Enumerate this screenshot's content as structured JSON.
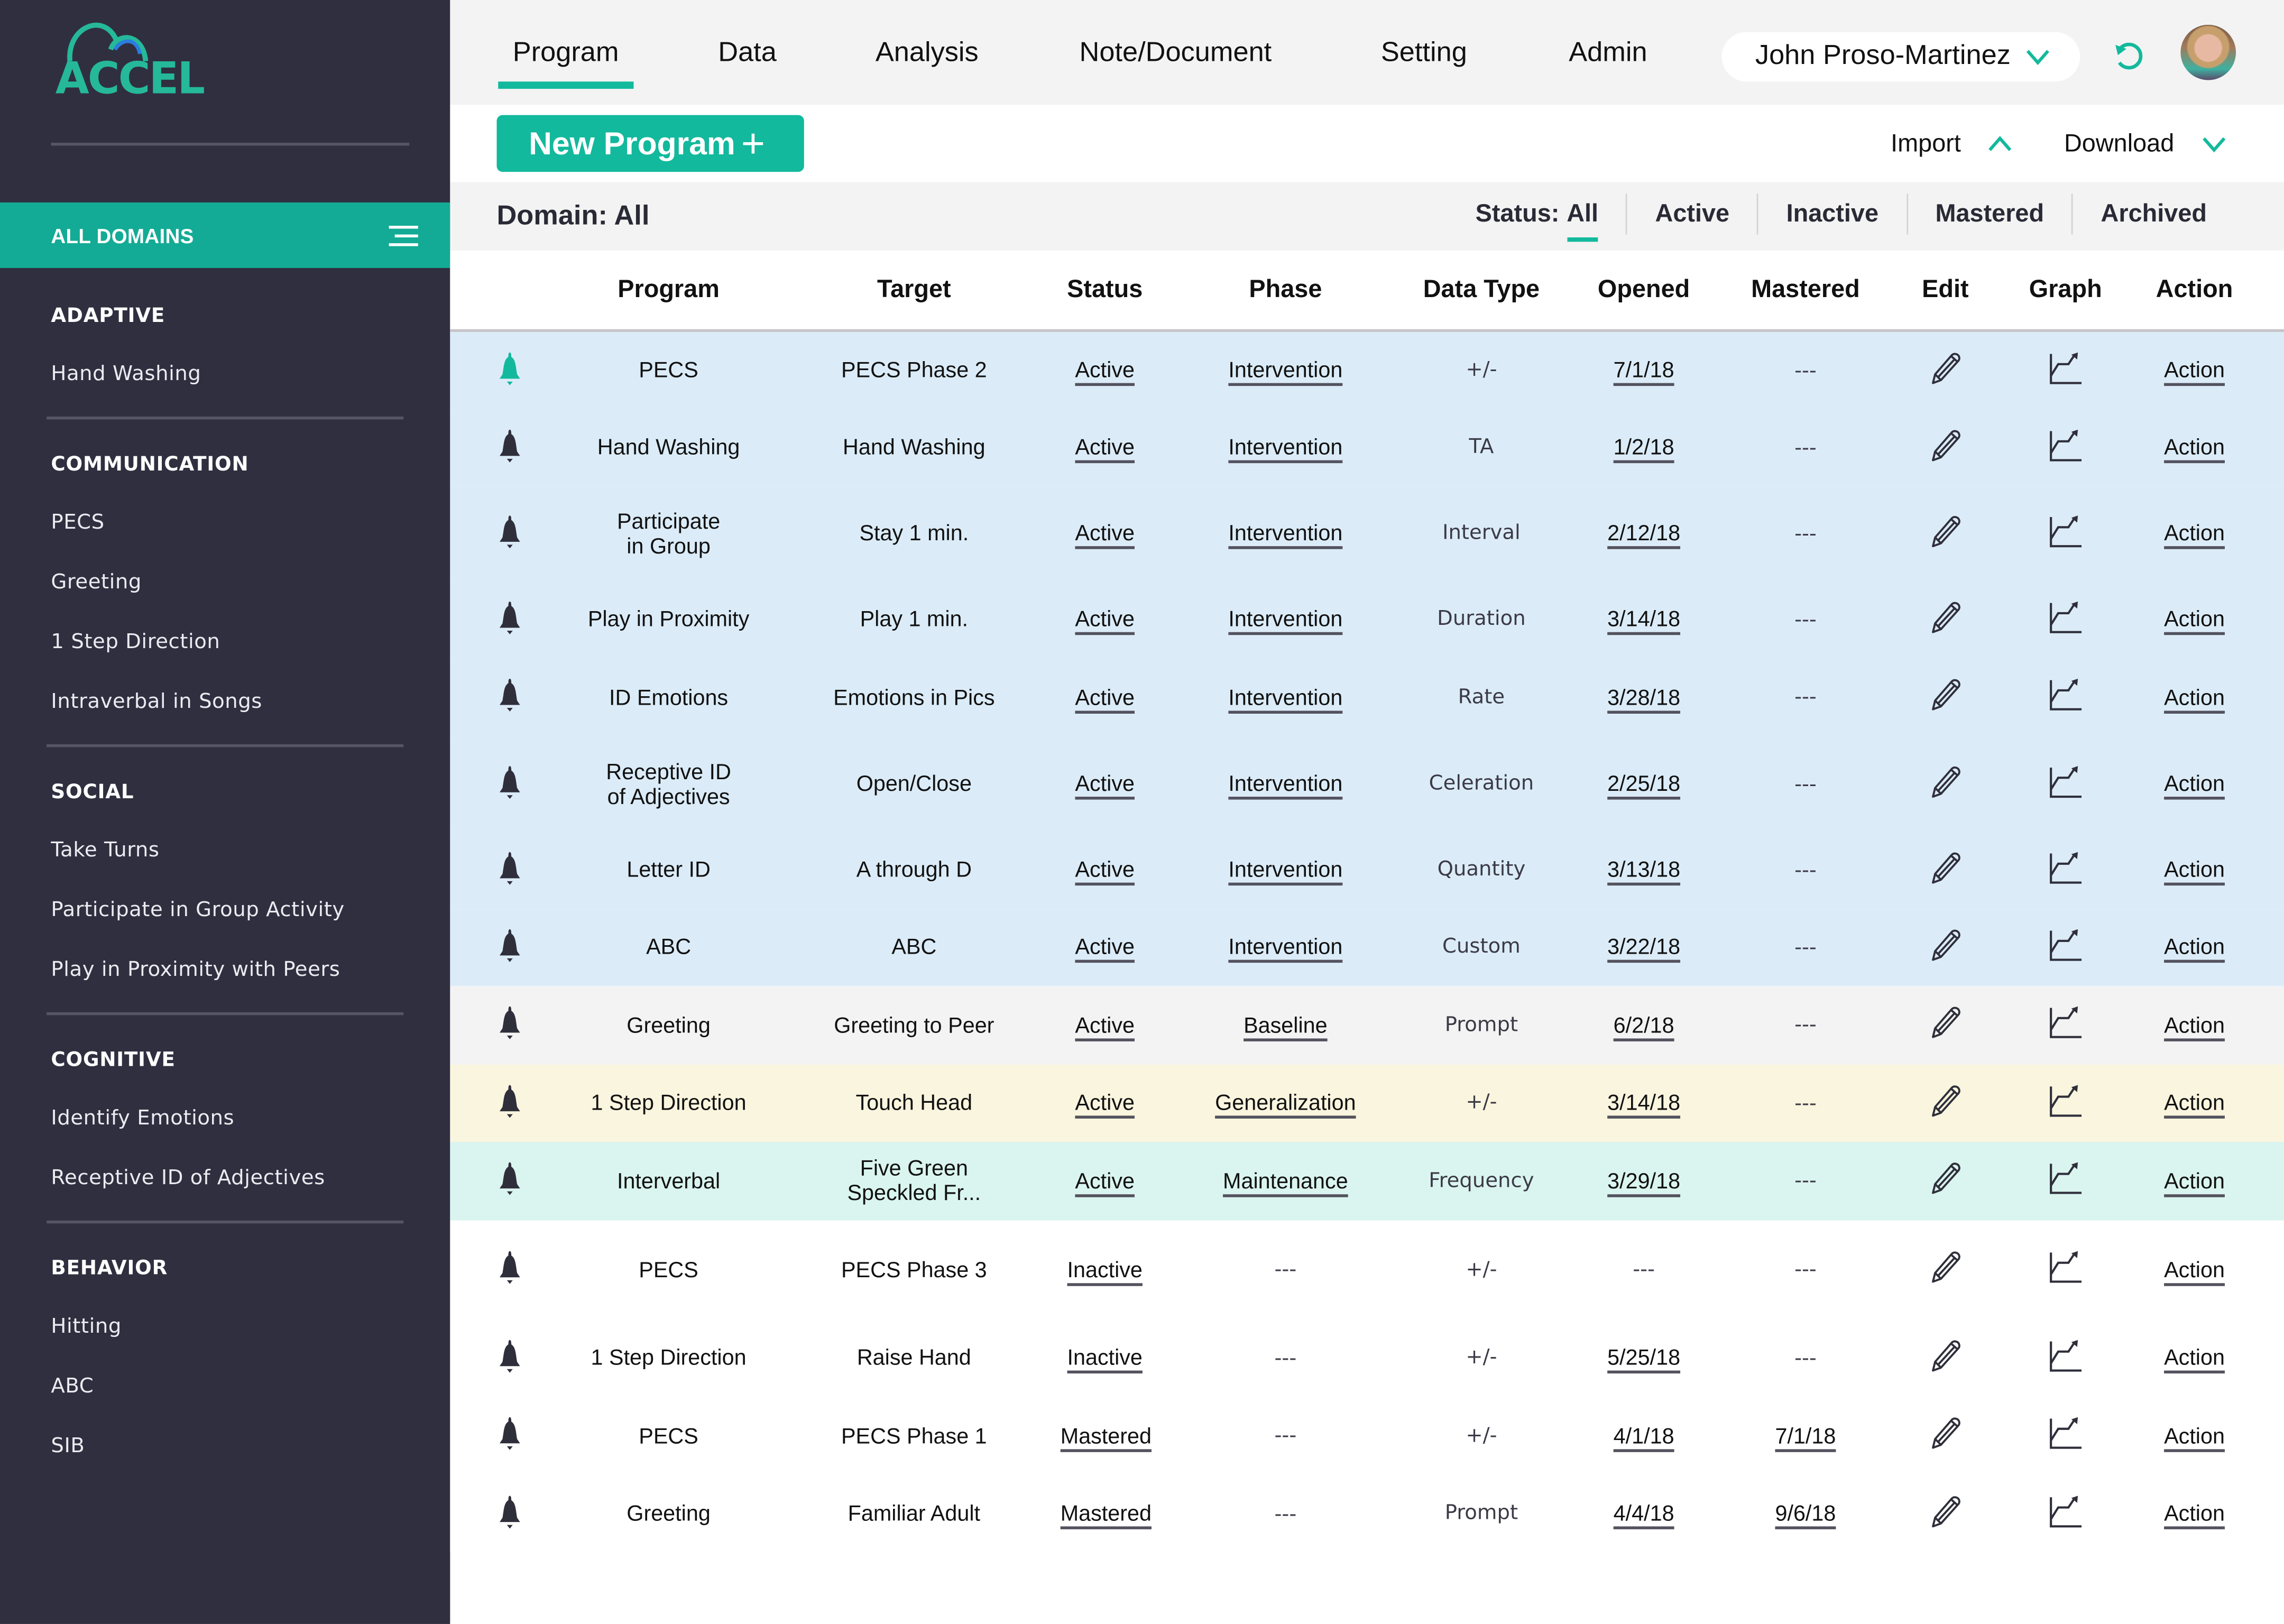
{
  "app": {
    "logo_text": "ACCEL"
  },
  "colors": {
    "accent": "#13b99c",
    "sidebar_bg": "#302f40",
    "row_intervention": "#dbecf8",
    "row_baseline": "#f3f3f3",
    "row_generalization": "#faf5de",
    "row_maintenance": "#daf5ef"
  },
  "nav": {
    "tabs": [
      {
        "label": "Program",
        "active": true
      },
      {
        "label": "Data"
      },
      {
        "label": "Analysis"
      },
      {
        "label": "Note/Document"
      },
      {
        "label": "Setting"
      },
      {
        "label": "Admin"
      }
    ],
    "client_name": "John Proso-Martinez",
    "refresh_icon": "refresh-icon",
    "avatar_icon": "user-avatar"
  },
  "toolbar": {
    "new_program_label": "New Program",
    "new_program_icon": "+",
    "import_label": "Import",
    "download_label": "Download"
  },
  "filters": {
    "domain_label": "Domain: All",
    "status_prefix": "Status:",
    "status_all": "All",
    "statuses": [
      "Active",
      "Inactive",
      "Mastered",
      "Archived"
    ]
  },
  "sidebar": {
    "all_domains_label": "ALL DOMAINS",
    "sections": [
      {
        "title": "ADAPTIVE",
        "items": [
          "Hand Washing"
        ]
      },
      {
        "title": "COMMUNICATION",
        "items": [
          "PECS",
          "Greeting",
          "1 Step Direction",
          "Intraverbal in Songs"
        ]
      },
      {
        "title": "SOCIAL",
        "items": [
          "Take Turns",
          "Participate in Group Activity",
          "Play in Proximity with Peers"
        ]
      },
      {
        "title": "COGNITIVE",
        "items": [
          "Identify Emotions",
          "Receptive ID of Adjectives"
        ]
      },
      {
        "title": "BEHAVIOR",
        "items": [
          "Hitting",
          "ABC",
          "SIB"
        ]
      }
    ]
  },
  "table": {
    "columns": [
      "",
      "Program",
      "Target",
      "Status",
      "Phase",
      "Data Type",
      "Opened",
      "Mastered",
      "Edit",
      "Graph",
      "Action"
    ],
    "rows": [
      {
        "bell_active": true,
        "program": "PECS",
        "target": "PECS Phase 2",
        "status": "Active",
        "phase": "Intervention",
        "data_type": "+/-",
        "opened": "7/1/18",
        "mastered": "---",
        "action": "Action",
        "bg": "blue",
        "h": 53
      },
      {
        "program": "Hand Washing",
        "target": "Hand Washing",
        "status": "Active",
        "phase": "Intervention",
        "data_type": "TA",
        "opened": "1/2/18",
        "mastered": "---",
        "action": "Action",
        "bg": "blue",
        "h": 53
      },
      {
        "program": "Participate\nin Group",
        "target": "Stay 1 min.",
        "status": "Active",
        "phase": "Intervention",
        "data_type": "Interval",
        "opened": "2/12/18",
        "mastered": "---",
        "action": "Action",
        "bg": "blue",
        "h": 65
      },
      {
        "program": "Play in Proximity",
        "target": "Play 1 min.",
        "status": "Active",
        "phase": "Intervention",
        "data_type": "Duration",
        "opened": "3/14/18",
        "mastered": "---",
        "action": "Action",
        "bg": "blue",
        "h": 53
      },
      {
        "program": "ID Emotions",
        "target": "Emotions in Pics",
        "status": "Active",
        "phase": "Intervention",
        "data_type": "Rate",
        "opened": "3/28/18",
        "mastered": "---",
        "action": "Action",
        "bg": "blue",
        "h": 54
      },
      {
        "program": "Receptive ID\nof Adjectives",
        "target": "Open/Close",
        "status": "Active",
        "phase": "Intervention",
        "data_type": "Celeration",
        "opened": "2/25/18",
        "mastered": "---",
        "action": "Action",
        "bg": "blue",
        "h": 65
      },
      {
        "program": "Letter ID",
        "target": "A through D",
        "status": "Active",
        "phase": "Intervention",
        "data_type": "Quantity",
        "opened": "3/13/18",
        "mastered": "---",
        "action": "Action",
        "bg": "blue",
        "h": 53
      },
      {
        "program": "ABC",
        "target": "ABC",
        "status": "Active",
        "phase": "Intervention",
        "data_type": "Custom",
        "opened": "3/22/18",
        "mastered": "---",
        "action": "Action",
        "bg": "blue",
        "h": 53
      },
      {
        "program": "Greeting",
        "target": "Greeting to Peer",
        "status": "Active",
        "phase": "Baseline",
        "data_type": "Prompt",
        "opened": "6/2/18",
        "mastered": "---",
        "action": "Action",
        "bg": "grey",
        "h": 54
      },
      {
        "program": "1 Step Direction",
        "target": "Touch Head",
        "status": "Active",
        "phase": "Generalization",
        "data_type": "+/-",
        "opened": "3/14/18",
        "mastered": "---",
        "action": "Action",
        "bg": "yellow",
        "h": 53
      },
      {
        "program": "Interverbal",
        "target": "Five Green\nSpeckled Fr...",
        "status": "Active",
        "phase": "Maintenance",
        "data_type": "Frequency",
        "opened": "3/29/18",
        "mastered": "---",
        "action": "Action",
        "bg": "mint",
        "h": 54
      },
      {
        "program": "PECS",
        "target": "PECS Phase 3",
        "status": "Inactive",
        "phase": "---",
        "data_type": "+/-",
        "opened": "---",
        "mastered": "---",
        "action": "Action",
        "bg": "white",
        "h": 68
      },
      {
        "program": "1 Step Direction",
        "target": "Raise Hand",
        "status": "Inactive",
        "phase": "---",
        "data_type": "+/-",
        "opened": "5/25/18",
        "mastered": "---",
        "action": "Action",
        "bg": "white",
        "h": 53
      },
      {
        "program": "PECS",
        "target": "PECS Phase 1",
        "status": "Mastered",
        "phase": "---",
        "data_type": "+/-",
        "opened": "4/1/18",
        "mastered": "7/1/18",
        "action": "Action",
        "bg": "white",
        "h": 54
      },
      {
        "program": "Greeting",
        "target": "Familiar Adult",
        "status": "Mastered",
        "phase": "---",
        "data_type": "Prompt",
        "opened": "4/4/18",
        "mastered": "9/6/18",
        "action": "Action",
        "bg": "white",
        "h": 53
      }
    ]
  }
}
